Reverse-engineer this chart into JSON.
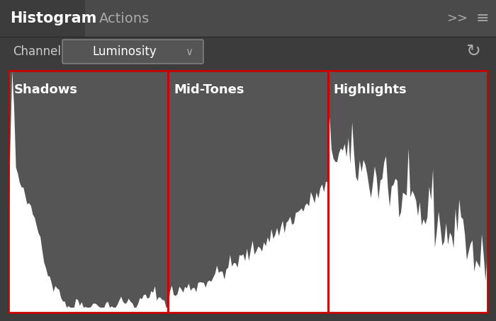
{
  "bg_color": "#3c3c3c",
  "header_bg": "#4a4a4a",
  "tab_active_bg": "#3c3c3c",
  "tab_inactive_bg": "#4f4f4f",
  "header_text_color": "#ffffff",
  "tab_active_color": "#ffffff",
  "tab_inactive_color": "#aaaaaa",
  "channel_label": "Channel:",
  "channel_value": "Luminosity",
  "histogram_bg": "#555555",
  "histogram_fill": "#ffffff",
  "red_box_color": "#cc0000",
  "section_labels": [
    "Shadows",
    "Mid-Tones",
    "Highlights"
  ],
  "label_color": "#ffffff",
  "label_fontsize": 13,
  "title_tab": "Histogram",
  "actions_tab": "Actions",
  "figsize": [
    7.0,
    4.54
  ],
  "dpi": 100
}
